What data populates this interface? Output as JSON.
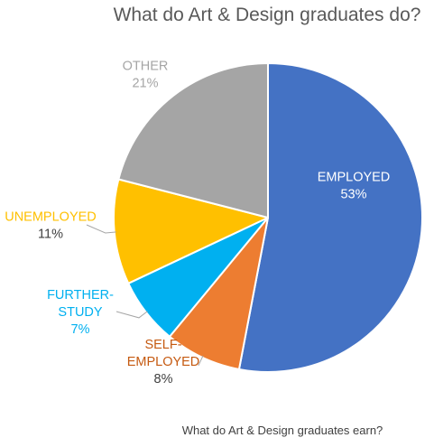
{
  "chart_data": {
    "type": "pie",
    "title": "What do Art & Design graduates do?",
    "caption": "What do Art & Design graduates earn?",
    "slices": [
      {
        "label": "EMPLOYED",
        "value": 53,
        "display": "53%",
        "color": "#4472C4",
        "label_color": "#FFFFFF"
      },
      {
        "label": "SELF-EMPLOYED",
        "value": 8,
        "display": "8%",
        "color": "#ED7D31",
        "label_color": "#C55A11"
      },
      {
        "label": "FURTHER-STUDY",
        "value": 7,
        "display": "7%",
        "color": "#00B0F0",
        "label_color": "#00B0F0"
      },
      {
        "label": "UNEMPLOYED",
        "value": 11,
        "display": "11%",
        "color": "#FFC000",
        "label_color": "#FFC000"
      },
      {
        "label": "OTHER",
        "value": 21,
        "display": "21%",
        "color": "#A5A5A5",
        "label_color": "#A5A5A5"
      }
    ]
  }
}
